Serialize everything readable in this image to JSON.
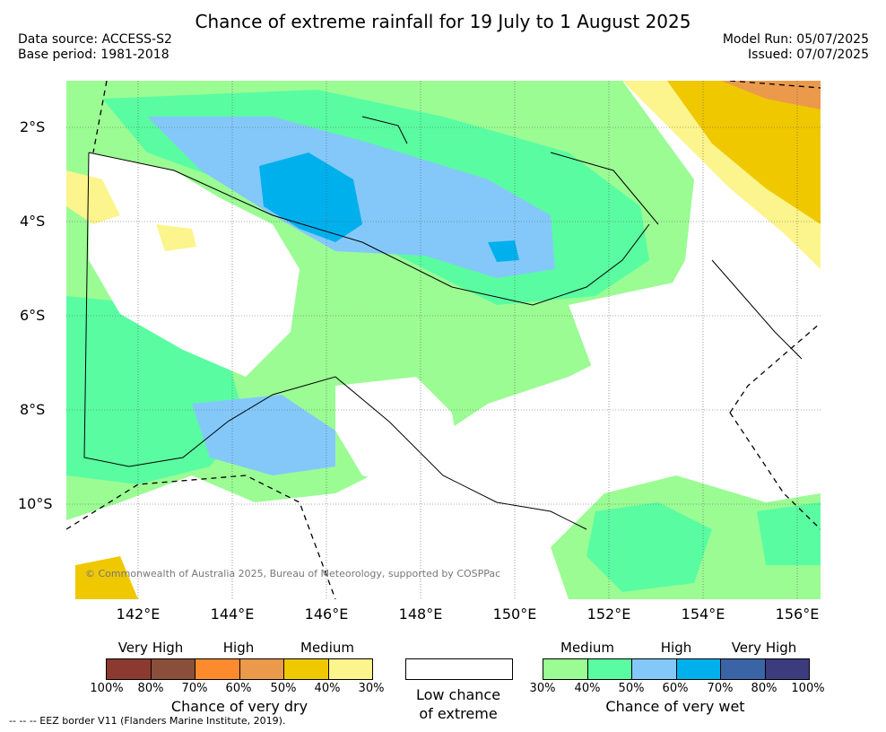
{
  "header": {
    "title": "Chance of extreme rainfall for 19 July to 1 August 2025",
    "data_source": "Data source: ACCESS-S2",
    "base_period": "Base period: 1981-2018",
    "model_run": "Model Run: 05/07/2025",
    "issued": "Issued: 07/07/2025"
  },
  "map": {
    "lat_labels": [
      "2°S",
      "4°S",
      "6°S",
      "8°S",
      "10°S"
    ],
    "lon_labels": [
      "142°E",
      "144°E",
      "146°E",
      "148°E",
      "150°E",
      "152°E",
      "154°E",
      "156°E"
    ],
    "credit": "© Commonwealth of Australia 2025, Bureau of Meteorology, supported by COSPPac",
    "colors": {
      "ocean_land_low": "#ffffff",
      "wet_medium": "#9bfc94",
      "wet_medium2": "#5afca1",
      "wet_high": "#84c8fa",
      "wet_high2": "#00b0ec",
      "dry_high": "#eb9a4b",
      "dry_medium": "#efc800",
      "dry_medium2": "#fcf48c"
    }
  },
  "legend": {
    "dry": {
      "headings": [
        "Very High",
        "High",
        "Medium"
      ],
      "ticks": [
        "100%",
        "80%",
        "70%",
        "60%",
        "50%",
        "40%",
        "30%"
      ],
      "colors": [
        "#8c3a30",
        "#8a4f3b",
        "#fd8a2c",
        "#eb9a4b",
        "#efc800",
        "#fcf48c"
      ],
      "caption": "Chance of very dry"
    },
    "low": {
      "caption_line1": "Low chance",
      "caption_line2": "of extreme"
    },
    "wet": {
      "headings": [
        "Medium",
        "High",
        "Very High"
      ],
      "ticks": [
        "30%",
        "40%",
        "50%",
        "60%",
        "70%",
        "80%",
        "100%"
      ],
      "colors": [
        "#9bfc94",
        "#5afca1",
        "#84c8fa",
        "#00b0ec",
        "#3a64a5",
        "#3b3b7e"
      ],
      "caption": "Chance of very wet"
    }
  },
  "footer": {
    "eez_note": "--  --  -- EEZ border V11 (Flanders Marine Institute, 2019)."
  }
}
